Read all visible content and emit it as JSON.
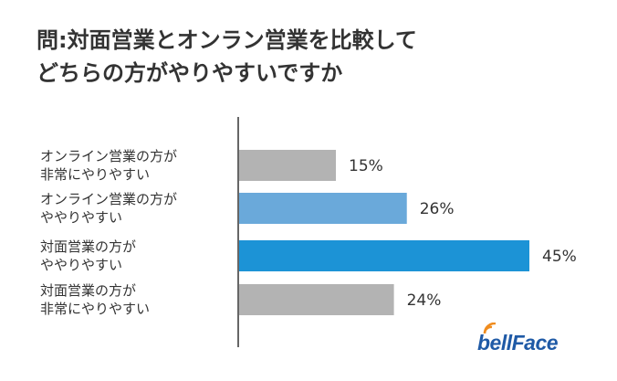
{
  "title": {
    "line1": "問:対面営業とオンラン営業を比較して",
    "line2": "どちらの方がやりやすいですか"
  },
  "logo": {
    "text": "bellFace",
    "color": "#1f5aa6"
  },
  "chart_data": {
    "type": "bar",
    "orientation": "horizontal",
    "title": "問:対面営業とオンラン営業を比較して どちらの方がやりやすいですか",
    "categories": [
      [
        "オンライン営業の方が",
        "非常にやりやすい"
      ],
      [
        "オンライン営業の方が",
        "ややりやすい"
      ],
      [
        "対面営業の方が",
        "ややりやすい"
      ],
      [
        "対面営業の方が",
        "非常にやりやすい"
      ]
    ],
    "values": [
      15,
      26,
      45,
      24
    ],
    "value_labels": [
      "15%",
      "26%",
      "45%",
      "24%"
    ],
    "colors": [
      "#b3b3b3",
      "#6aa9da",
      "#1c93d6",
      "#b3b3b3"
    ],
    "unit": "%",
    "xlim": [
      0,
      45
    ],
    "grid": false
  }
}
